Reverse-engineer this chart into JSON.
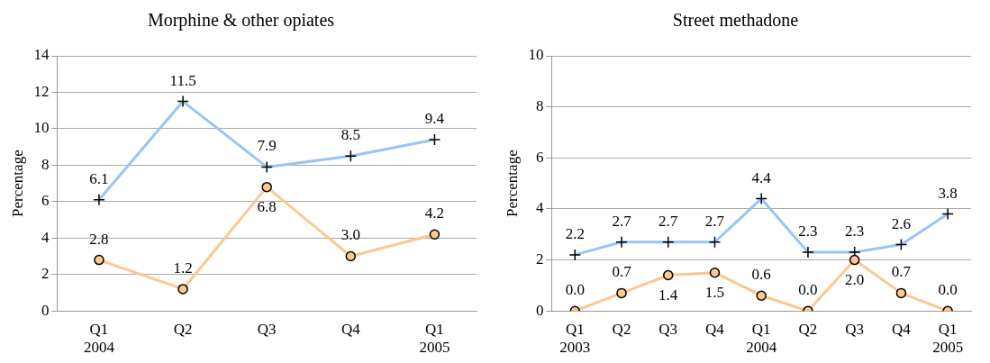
{
  "chart_data": [
    {
      "type": "line",
      "title": "Morphine & other opiates",
      "ylabel": "Percentage",
      "categories": [
        "Q1\n2004",
        "Q2",
        "Q3",
        "Q4",
        "Q1\n2005"
      ],
      "ylim": [
        0,
        14
      ],
      "yticks": [
        0,
        2,
        4,
        6,
        8,
        10,
        12,
        14
      ],
      "grid": "y",
      "legend": false,
      "line_style": "solid",
      "series": [
        {
          "color": "#99c5f5",
          "marker": "cross",
          "values": [
            6.1,
            11.5,
            7.9,
            8.5,
            9.4
          ],
          "value_labels": [
            "6.1",
            "11.5",
            "7.9",
            "8.5",
            "9.4"
          ]
        },
        {
          "color": "#fcc88f",
          "marker": "circle",
          "values": [
            2.8,
            1.2,
            6.8,
            3.0,
            4.2
          ],
          "value_labels": [
            "2.8",
            "1.2",
            "6.8",
            "3.0",
            "4.2"
          ]
        }
      ]
    },
    {
      "type": "line",
      "title": "Street methadone",
      "ylabel": "Percentage",
      "categories": [
        "Q1\n2003",
        "Q2",
        "Q3",
        "Q4",
        "Q1\n2004",
        "Q2",
        "Q3",
        "Q4",
        "Q1\n2005"
      ],
      "ylim": [
        0,
        10
      ],
      "yticks": [
        0,
        2,
        4,
        6,
        8,
        10
      ],
      "grid": "y",
      "legend": false,
      "line_style": "solid",
      "series": [
        {
          "color": "#99c5f5",
          "marker": "cross",
          "values": [
            2.2,
            2.7,
            2.7,
            2.7,
            4.4,
            2.3,
            2.3,
            2.6,
            3.8
          ],
          "value_labels": [
            "2.2",
            "2.7",
            "2.7",
            "2.7",
            "4.4",
            "2.3",
            "2.3",
            "2.6",
            "3.8"
          ]
        },
        {
          "color": "#fcc88f",
          "marker": "circle",
          "values": [
            0.0,
            0.7,
            1.4,
            1.5,
            0.6,
            0.0,
            2.0,
            0.7,
            0.0
          ],
          "value_labels": [
            "0.0",
            "0.7",
            "1.4",
            "1.5",
            "0.6",
            "0.0",
            "2.0",
            "0.7",
            "0.0"
          ]
        }
      ]
    }
  ]
}
